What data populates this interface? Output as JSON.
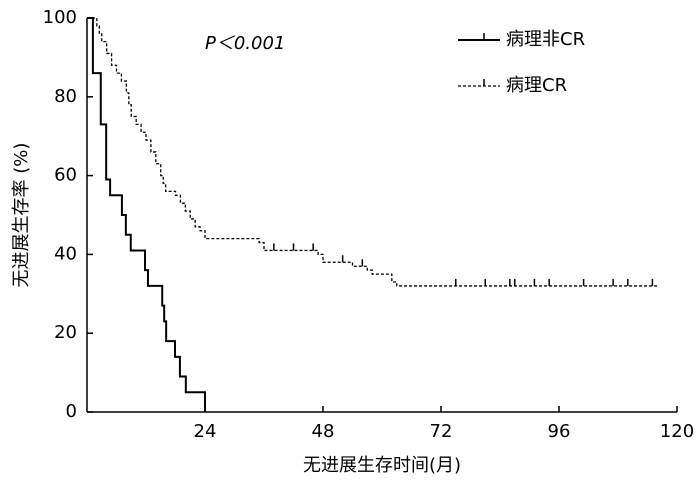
{
  "chart_data": {
    "type": "step",
    "annotation": "P＜0.001",
    "x_label": "无进展生存时间(月)",
    "y_label": "无进展生存率 (%)",
    "xlim": [
      0,
      120
    ],
    "xticks": [
      24,
      48,
      72,
      96,
      120
    ],
    "ylim": [
      0,
      100
    ],
    "yticks": [
      0,
      20,
      40,
      60,
      80,
      100
    ],
    "series": [
      {
        "name": "病理非CR",
        "color": "#000000",
        "dash": false,
        "x": [
          0,
          1.2,
          2.8,
          3.9,
          4.7,
          7.1,
          7.9,
          8.9,
          11.8,
          12.4,
          15.3,
          15.7,
          16.1,
          17.9,
          18.9,
          20.1,
          24
        ],
        "values": [
          100,
          86,
          73,
          59,
          55,
          50,
          45,
          41,
          36,
          32,
          27,
          23,
          18,
          14,
          9,
          5,
          0
        ],
        "censor_x": [],
        "censor_values": []
      },
      {
        "name": "病理CR",
        "color": "#000000",
        "dash": true,
        "x": [
          0,
          2,
          2.5,
          3,
          4,
          5,
          6,
          7,
          8,
          8.5,
          9,
          10,
          11,
          12,
          13,
          14,
          15,
          15.5,
          16,
          18,
          19,
          20,
          21,
          22,
          23,
          24,
          35,
          36,
          47,
          48,
          54,
          57,
          58,
          62,
          63,
          116
        ],
        "values": [
          100,
          98,
          96,
          94,
          91,
          88,
          86,
          84,
          81,
          78,
          75,
          73,
          71,
          69,
          66,
          63,
          60,
          58,
          56,
          55,
          53,
          51,
          49,
          47,
          46,
          44,
          43,
          41,
          40,
          38,
          37,
          36,
          35,
          33,
          32,
          32
        ],
        "censor_x": [
          38,
          42,
          46,
          52,
          56,
          75,
          81,
          86,
          87,
          91,
          94,
          101,
          107,
          110,
          115
        ],
        "censor_values": [
          41,
          41,
          41,
          38,
          37,
          32,
          32,
          32,
          32,
          32,
          32,
          32,
          32,
          32,
          32
        ]
      }
    ]
  }
}
